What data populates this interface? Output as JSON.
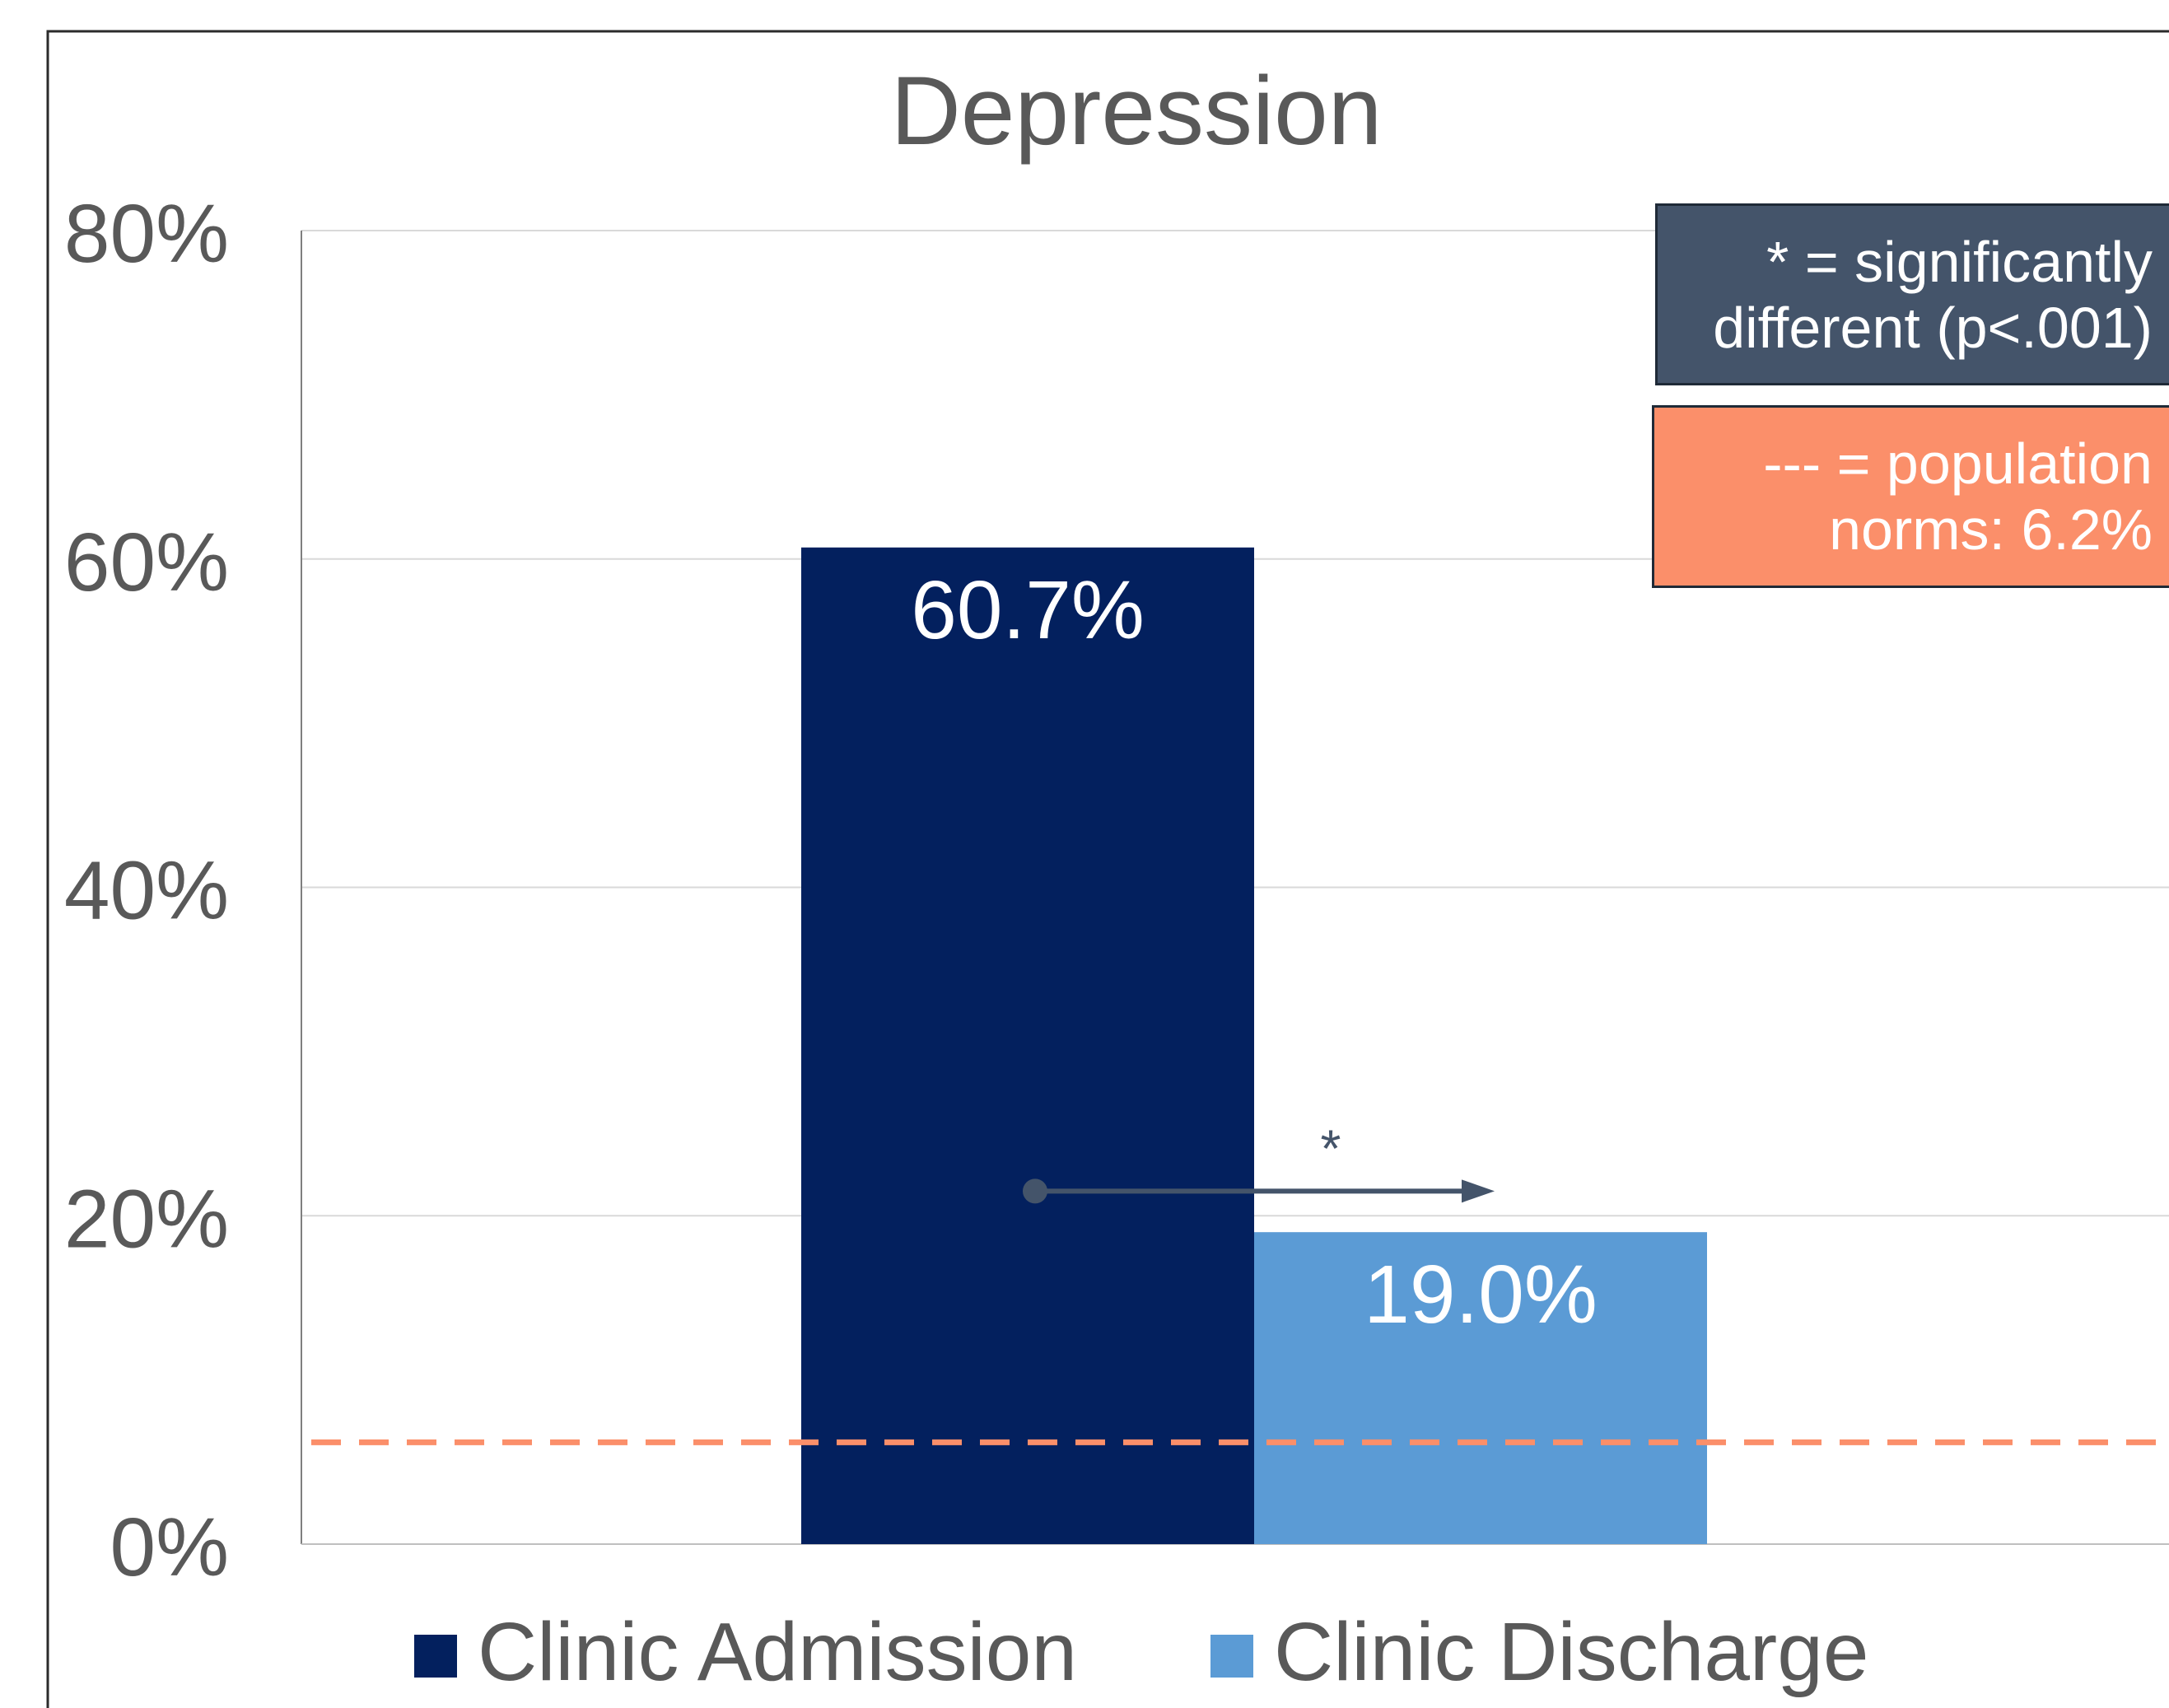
{
  "chart_data": {
    "type": "bar",
    "title": "Depression",
    "categories": [
      ""
    ],
    "series": [
      {
        "name": "Clinic Admission",
        "values": [
          60.7
        ],
        "label": "60.7%",
        "color": "#03205e"
      },
      {
        "name": "Clinic Discharge",
        "values": [
          19.0
        ],
        "label": "19.0%",
        "color": "#5b9bd5"
      }
    ],
    "ylim": [
      0,
      80
    ],
    "yticks": [
      "0%",
      "20%",
      "40%",
      "60%",
      "80%"
    ],
    "ytick_values": [
      0,
      20,
      40,
      60,
      80
    ],
    "grid": true,
    "legend_position": "bottom",
    "reference_line": {
      "value": 6.2,
      "style": "dashed",
      "color": "#fb8f6a"
    },
    "significance_marker": {
      "text": "*",
      "arrow_y": 21.5,
      "color": "#44546a"
    },
    "annotations": [
      {
        "id": "sig",
        "lines": [
          "* = significantly",
          "different (p<.001)"
        ],
        "background": "#44546a"
      },
      {
        "id": "norm",
        "lines": [
          "--- = population",
          "norms: 6.2%"
        ],
        "background": "#fb8f6a"
      }
    ]
  }
}
